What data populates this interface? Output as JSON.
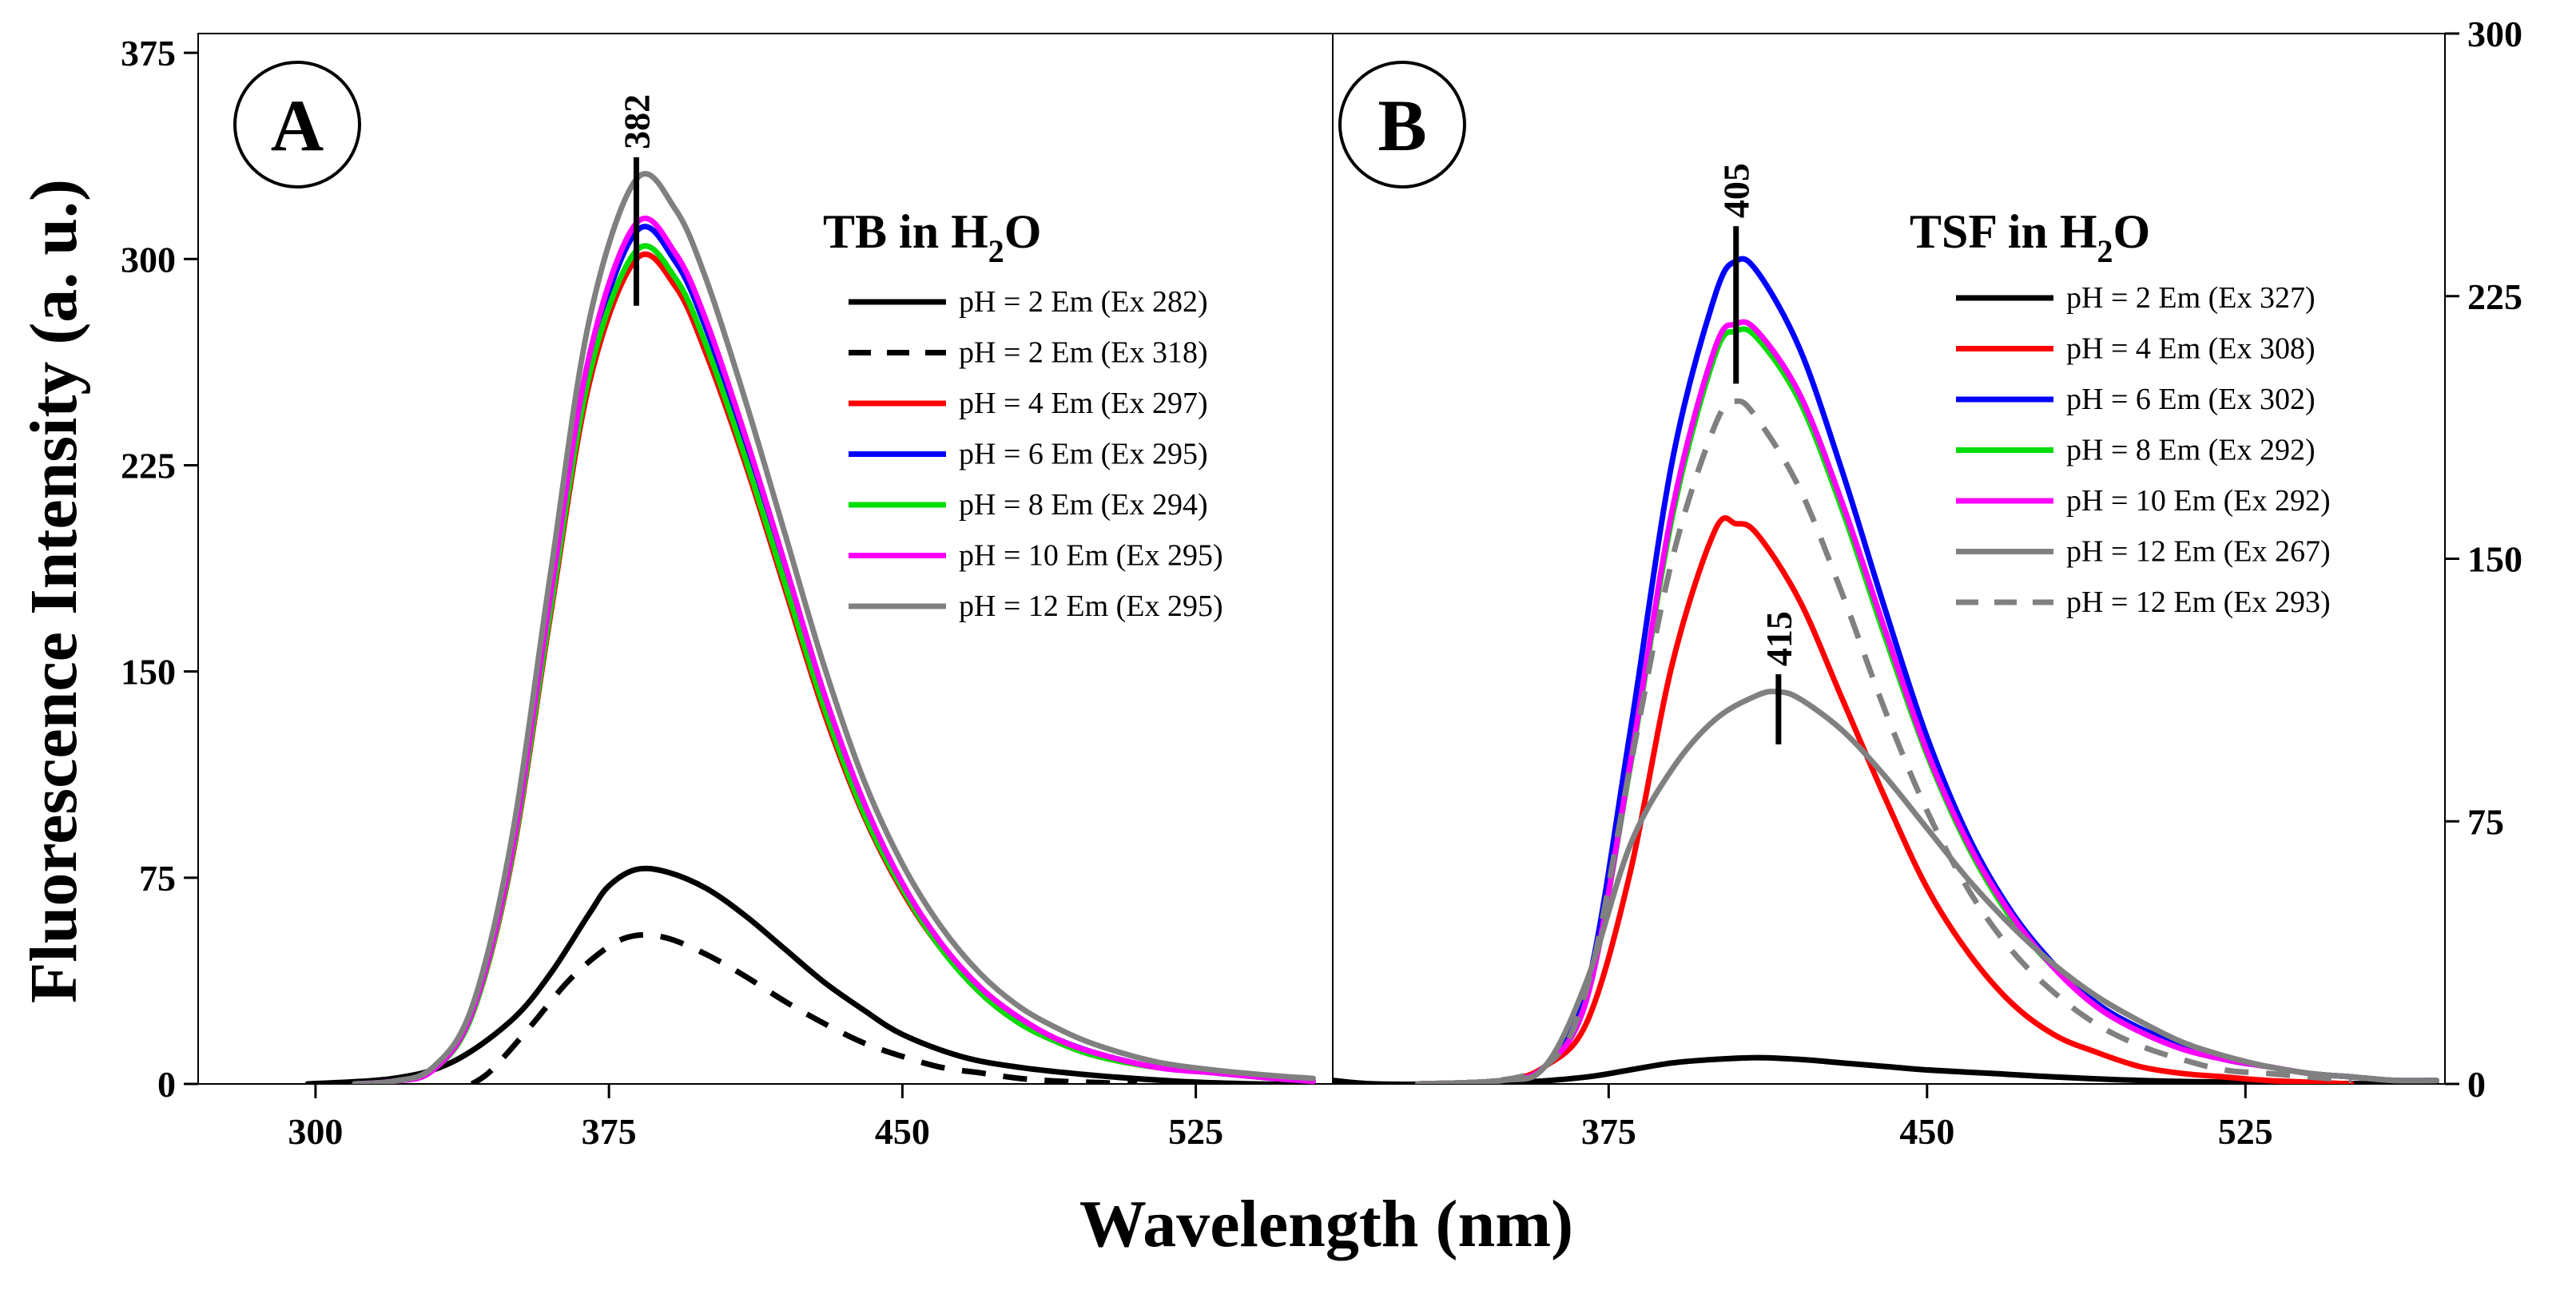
{
  "chart_data": {
    "type": "line",
    "xlabel": "Wavelength (nm)",
    "ylabel": "Fluorescence Intensity (a. u.)",
    "panels": [
      {
        "letter": "A",
        "title_main": "TB in H",
        "title_sub": "2",
        "title_end": "O",
        "xlim": [
          270,
          560
        ],
        "ylim": [
          0,
          382
        ],
        "xticks": [
          300,
          375,
          450,
          525
        ],
        "yticks": [
          0,
          75,
          150,
          225,
          300,
          375
        ],
        "y_axis_side": "left",
        "peak_markers": [
          {
            "label": "382",
            "x": 382,
            "y_low": 283,
            "y_high": 337
          }
        ],
        "series": [
          {
            "name": "pH = 2 Em (Ex 282)",
            "color": "#000000",
            "dashed": false,
            "x": [
              298,
              320,
              335,
              350,
              360,
              370,
              375,
              382,
              390,
              400,
              410,
              420,
              430,
              440,
              450,
              465,
              480,
              500,
              520,
              540,
              555
            ],
            "y": [
              0,
              2,
              8,
              23,
              40,
              62,
              72,
              78,
              77,
              71,
              61,
              49,
              37,
              27,
              18,
              10,
              6,
              3,
              1,
              0,
              0
            ]
          },
          {
            "name": "pH = 2 Em (Ex 318)",
            "color": "#000000",
            "dashed": true,
            "x": [
              340,
              345,
              355,
              365,
              375,
              382,
              390,
              400,
              410,
              420,
              430,
              440,
              450,
              460,
              470,
              480,
              490,
              500,
              510
            ],
            "y": [
              0,
              5,
              21,
              38,
              50,
              54,
              53,
              47,
              39,
              30,
              22,
              15,
              10,
              6,
              4,
              2,
              1,
              0.5,
              0
            ]
          },
          {
            "name": "pH = 4 Em (Ex 297)",
            "color": "#ff0000",
            "dashed": false,
            "x": [
              310,
              320,
              330,
              340,
              350,
              360,
              370,
              382,
              392,
              400,
              410,
              420,
              430,
              440,
              450,
              460,
              470,
              480,
              490,
              500,
              515,
              530,
              545,
              555
            ],
            "y": [
              0,
              1,
              5,
              25,
              80,
              170,
              255,
              300,
              290,
              265,
              225,
              180,
              135,
              98,
              70,
              49,
              33,
              22,
              15,
              10,
              6,
              4,
              2,
              1
            ]
          },
          {
            "name": "pH = 6 Em (Ex 295)",
            "color": "#0000ff",
            "dashed": false,
            "x": [
              310,
              320,
              330,
              340,
              350,
              360,
              370,
              382,
              392,
              400,
              410,
              420,
              430,
              440,
              450,
              460,
              470,
              480,
              490,
              500,
              515,
              530,
              545,
              555
            ],
            "y": [
              0,
              1,
              5,
              26,
              82,
              175,
              262,
              310,
              299,
              274,
              232,
              186,
              140,
              101,
              72,
              50,
              34,
              23,
              16,
              11,
              6,
              4,
              2,
              1
            ]
          },
          {
            "name": "pH = 8 Em (Ex 294)",
            "color": "#00dd00",
            "dashed": false,
            "x": [
              310,
              320,
              330,
              340,
              350,
              360,
              370,
              382,
              392,
              400,
              410,
              420,
              430,
              440,
              450,
              460,
              470,
              480,
              490,
              500,
              515,
              530,
              545,
              555
            ],
            "y": [
              0,
              1,
              5,
              25,
              81,
              172,
              258,
              303,
              293,
              268,
              227,
              182,
              137,
              99,
              71,
              49,
              33,
              22,
              15,
              10,
              6,
              4,
              2,
              1
            ]
          },
          {
            "name": "pH = 10 Em (Ex 295)",
            "color": "#ff00ff",
            "dashed": false,
            "x": [
              310,
              320,
              330,
              340,
              350,
              360,
              370,
              382,
              392,
              400,
              410,
              420,
              430,
              440,
              450,
              460,
              470,
              480,
              490,
              500,
              515,
              530,
              545,
              555
            ],
            "y": [
              0,
              1,
              5,
              26,
              83,
              177,
              265,
              313,
              302,
              277,
              235,
              189,
              142,
              103,
              73,
              51,
              35,
              24,
              16,
              11,
              6,
              4,
              2,
              1
            ]
          },
          {
            "name": "pH = 12 Em (Ex 295)",
            "color": "#808080",
            "dashed": false,
            "x": [
              310,
              320,
              330,
              340,
              350,
              360,
              370,
              382,
              392,
              400,
              410,
              420,
              430,
              440,
              450,
              460,
              470,
              480,
              490,
              500,
              515,
              530,
              545,
              555
            ],
            "y": [
              0,
              1,
              6,
              28,
              88,
              185,
              278,
              329,
              318,
              292,
              248,
              200,
              152,
              111,
              80,
              57,
              40,
              28,
              20,
              14,
              8,
              5,
              3,
              2
            ]
          }
        ]
      },
      {
        "letter": "B",
        "title_main": "TSF in H",
        "title_sub": "2",
        "title_end": "O",
        "xlim": [
          310,
          572
        ],
        "ylim": [
          0,
          300
        ],
        "xticks": [
          375,
          450,
          525
        ],
        "yticks": [
          0,
          75,
          150,
          225,
          300
        ],
        "y_axis_side": "right",
        "peak_markers": [
          {
            "label": "405",
            "x": 405,
            "y_low": 200,
            "y_high": 245
          },
          {
            "label": "415",
            "x": 415,
            "y_low": 97,
            "y_high": 117
          }
        ],
        "series": [
          {
            "name": "pH = 2 Em (Ex 327)",
            "color": "#000000",
            "dashed": false,
            "x": [
              310,
              320,
              340,
              355,
              370,
              380,
              390,
              400,
              410,
              420,
              430,
              440,
              450,
              465,
              480,
              500,
              520,
              540,
              560,
              570
            ],
            "y": [
              1,
              0,
              0,
              0.5,
              2,
              4,
              6,
              7,
              7.5,
              7,
              6,
              5,
              4,
              3,
              2,
              1,
              0.5,
              0.2,
              0,
              0
            ]
          },
          {
            "name": "pH = 4 Em (Ex 308)",
            "color": "#ff0000",
            "dashed": false,
            "x": [
              330,
              350,
              360,
              370,
              380,
              390,
              400,
              405,
              410,
              420,
              430,
              440,
              450,
              460,
              470,
              480,
              490,
              500,
              510,
              520,
              530,
              540,
              550
            ],
            "y": [
              0,
              1,
              5,
              18,
              60,
              120,
              158,
              160,
              157,
              138,
              110,
              82,
              56,
              37,
              23,
              14,
              9,
              5,
              3,
              2,
              1,
              0.5,
              0
            ]
          },
          {
            "name": "pH = 6 Em (Ex 302)",
            "color": "#0000ff",
            "dashed": false,
            "x": [
              330,
              350,
              360,
              370,
              380,
              390,
              400,
              405,
              410,
              420,
              430,
              440,
              450,
              460,
              470,
              480,
              490,
              500,
              510,
              520,
              530,
              540,
              550,
              560,
              570
            ],
            "y": [
              0,
              1,
              5,
              28,
              100,
              178,
              225,
              235,
              232,
              210,
              175,
              136,
              99,
              70,
              49,
              34,
              23,
              16,
              11,
              7,
              5,
              3,
              2,
              1,
              1
            ]
          },
          {
            "name": "pH = 8 Em (Ex 292)",
            "color": "#00dd00",
            "dashed": false,
            "x": [
              330,
              350,
              360,
              370,
              380,
              390,
              400,
              405,
              410,
              420,
              430,
              440,
              450,
              460,
              470,
              480,
              490,
              500,
              510,
              520,
              530,
              540,
              550,
              560,
              570
            ],
            "y": [
              0,
              1,
              5,
              25,
              90,
              162,
              208,
              215,
              213,
              195,
              164,
              128,
              94,
              67,
              47,
              33,
              22,
              15,
              10,
              7,
              5,
              3,
              2,
              1,
              1
            ]
          },
          {
            "name": "pH = 10 Em (Ex 292)",
            "color": "#ff00ff",
            "dashed": false,
            "x": [
              330,
              350,
              360,
              370,
              380,
              390,
              400,
              405,
              410,
              420,
              430,
              440,
              450,
              460,
              470,
              480,
              490,
              500,
              510,
              520,
              530,
              540,
              550,
              560,
              570
            ],
            "y": [
              0,
              1,
              5,
              25,
              91,
              164,
              210,
              217,
              215,
              197,
              166,
              130,
              95,
              68,
              48,
              33,
              22,
              15,
              10,
              7,
              5,
              3,
              2,
              1,
              1
            ]
          },
          {
            "name": "pH = 12 Em (Ex 267)",
            "color": "#808080",
            "dashed": false,
            "x": [
              330,
              350,
              360,
              370,
              380,
              390,
              400,
              410,
              415,
              420,
              430,
              440,
              450,
              460,
              470,
              480,
              490,
              500,
              510,
              520,
              530,
              540,
              550,
              560,
              570
            ],
            "y": [
              0,
              1,
              5,
              30,
              68,
              90,
              104,
              111,
              112,
              110,
              101,
              88,
              73,
              58,
              45,
              34,
              25,
              18,
              12,
              8,
              5,
              3,
              2,
              1,
              1
            ]
          },
          {
            "name": "pH = 12 Em (Ex 293)",
            "color": "#808080",
            "dashed": true,
            "x": [
              340,
              360,
              370,
              380,
              390,
              400,
              405,
              410,
              420,
              430,
              440,
              450,
              460,
              470,
              480,
              490,
              500,
              510,
              520,
              530,
              540,
              550
            ],
            "y": [
              0,
              5,
              28,
              90,
              150,
              188,
              195,
              190,
              170,
              140,
              107,
              78,
              55,
              38,
              26,
              17,
              11,
              7,
              4,
              3,
              2,
              1
            ]
          }
        ]
      }
    ]
  }
}
